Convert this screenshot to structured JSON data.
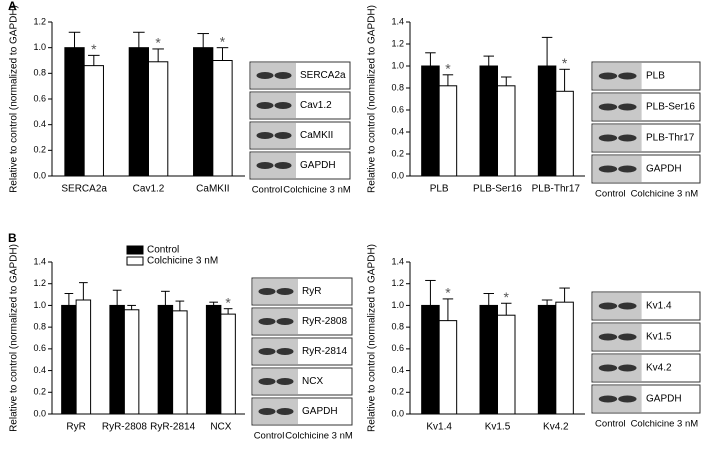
{
  "panels": [
    "A",
    "B"
  ],
  "chart_data": [
    {
      "type": "bar",
      "ylabel": "Relative to control (normalized to GAPDH)",
      "categories": [
        "SERCA2a",
        "Cav1.2",
        "CaMKII"
      ],
      "ylim": [
        0,
        1.2
      ],
      "yticks": [
        {
          "value": 0,
          "label": "0.0"
        },
        {
          "value": 0.2,
          "label": "0.2"
        },
        {
          "value": 0.4,
          "label": "0.4"
        },
        {
          "value": 0.6,
          "label": "0.6"
        },
        {
          "value": 0.8,
          "label": "0.8"
        },
        {
          "value": 1.0,
          "label": "1.0"
        },
        {
          "value": 1.2,
          "label": "1.2"
        }
      ],
      "series": [
        {
          "color": "#000000",
          "values": [
            1.0,
            1.0,
            1.0
          ],
          "errors": [
            0.12,
            0.12,
            0.11
          ]
        },
        {
          "color": "#ffffff",
          "values": [
            0.86,
            0.89,
            0.9
          ],
          "errors": [
            0.08,
            0.1,
            0.1
          ],
          "annotations": [
            "*",
            "*",
            "*"
          ]
        }
      ],
      "blot": {
        "bands": [
          "SERCA2a",
          "Cav1.2",
          "CaMKII",
          "GAPDH"
        ],
        "lanes": [
          "Control",
          "Colchicine 3 nM"
        ]
      }
    },
    {
      "type": "bar",
      "ylabel": "Relative to control (normalized to GAPDH)",
      "categories": [
        "PLB",
        "PLB-Ser16",
        "PLB-Thr17"
      ],
      "ylim": [
        0,
        1.4
      ],
      "yticks": [
        {
          "value": 0,
          "label": "0.0"
        },
        {
          "value": 0.2,
          "label": "0.2"
        },
        {
          "value": 0.4,
          "label": "0.4"
        },
        {
          "value": 0.6,
          "label": "0.6"
        },
        {
          "value": 0.8,
          "label": "0.8"
        },
        {
          "value": 1.0,
          "label": "1.0"
        },
        {
          "value": 1.2,
          "label": "1.2"
        },
        {
          "value": 1.4,
          "label": "1.4"
        }
      ],
      "series": [
        {
          "color": "#000000",
          "values": [
            1.0,
            1.0,
            1.0
          ],
          "errors": [
            0.12,
            0.09,
            0.26
          ]
        },
        {
          "color": "#ffffff",
          "values": [
            0.82,
            0.82,
            0.77
          ],
          "errors": [
            0.1,
            0.08,
            0.2
          ],
          "annotations": [
            "*",
            null,
            "*"
          ]
        }
      ],
      "blot": {
        "bands": [
          "PLB",
          "PLB-Ser16",
          "PLB-Thr17",
          "GAPDH"
        ],
        "lanes": [
          "Control",
          "Colchicine 3 nM"
        ]
      }
    },
    {
      "type": "bar",
      "ylabel": "Relative to control (normalized to GAPDH)",
      "categories": [
        "RyR",
        "RyR-2808",
        "RyR-2814",
        "NCX"
      ],
      "ylim": [
        0,
        1.4
      ],
      "yticks": [
        {
          "value": 0,
          "label": "0.0"
        },
        {
          "value": 0.2,
          "label": "0.2"
        },
        {
          "value": 0.4,
          "label": "0.4"
        },
        {
          "value": 0.6,
          "label": "0.6"
        },
        {
          "value": 0.8,
          "label": "0.8"
        },
        {
          "value": 1.0,
          "label": "1.0"
        },
        {
          "value": 1.2,
          "label": "1.2"
        },
        {
          "value": 1.4,
          "label": "1.4"
        }
      ],
      "legend": "top",
      "series": [
        {
          "name": "Control",
          "color": "#000000",
          "values": [
            1.0,
            1.0,
            1.0,
            1.0
          ],
          "errors": [
            0.11,
            0.14,
            0.13,
            0.03
          ]
        },
        {
          "name": "Colchicine 3 nM",
          "color": "#ffffff",
          "values": [
            1.05,
            0.96,
            0.95,
            0.92
          ],
          "errors": [
            0.16,
            0.04,
            0.09,
            0.05
          ],
          "annotations": [
            null,
            null,
            null,
            "*"
          ]
        }
      ],
      "blot": {
        "bands": [
          "RyR",
          "RyR-2808",
          "RyR-2814",
          "NCX",
          "GAPDH"
        ],
        "lanes": [
          "Control",
          "Colchicine 3 nM"
        ]
      }
    },
    {
      "type": "bar",
      "ylabel": "Relative to control (normalized to GAPDH)",
      "categories": [
        "Kv1.4",
        "Kv1.5",
        "Kv4.2"
      ],
      "ylim": [
        0,
        1.4
      ],
      "yticks": [
        {
          "value": 0,
          "label": "0.0"
        },
        {
          "value": 0.2,
          "label": "0.2"
        },
        {
          "value": 0.4,
          "label": "0.4"
        },
        {
          "value": 0.6,
          "label": "0.6"
        },
        {
          "value": 0.8,
          "label": "0.8"
        },
        {
          "value": 1.0,
          "label": "1.0"
        },
        {
          "value": 1.2,
          "label": "1.2"
        },
        {
          "value": 1.4,
          "label": "1.4"
        }
      ],
      "series": [
        {
          "color": "#000000",
          "values": [
            1.0,
            1.0,
            1.0
          ],
          "errors": [
            0.23,
            0.11,
            0.05
          ]
        },
        {
          "color": "#ffffff",
          "values": [
            0.86,
            0.91,
            1.03
          ],
          "errors": [
            0.2,
            0.11,
            0.13
          ],
          "annotations": [
            "*",
            "*",
            null
          ]
        }
      ],
      "blot": {
        "bands": [
          "Kv1.4",
          "Kv1.5",
          "Kv4.2",
          "GAPDH"
        ],
        "lanes": [
          "Control",
          "Colchicine 3 nM"
        ]
      }
    }
  ]
}
